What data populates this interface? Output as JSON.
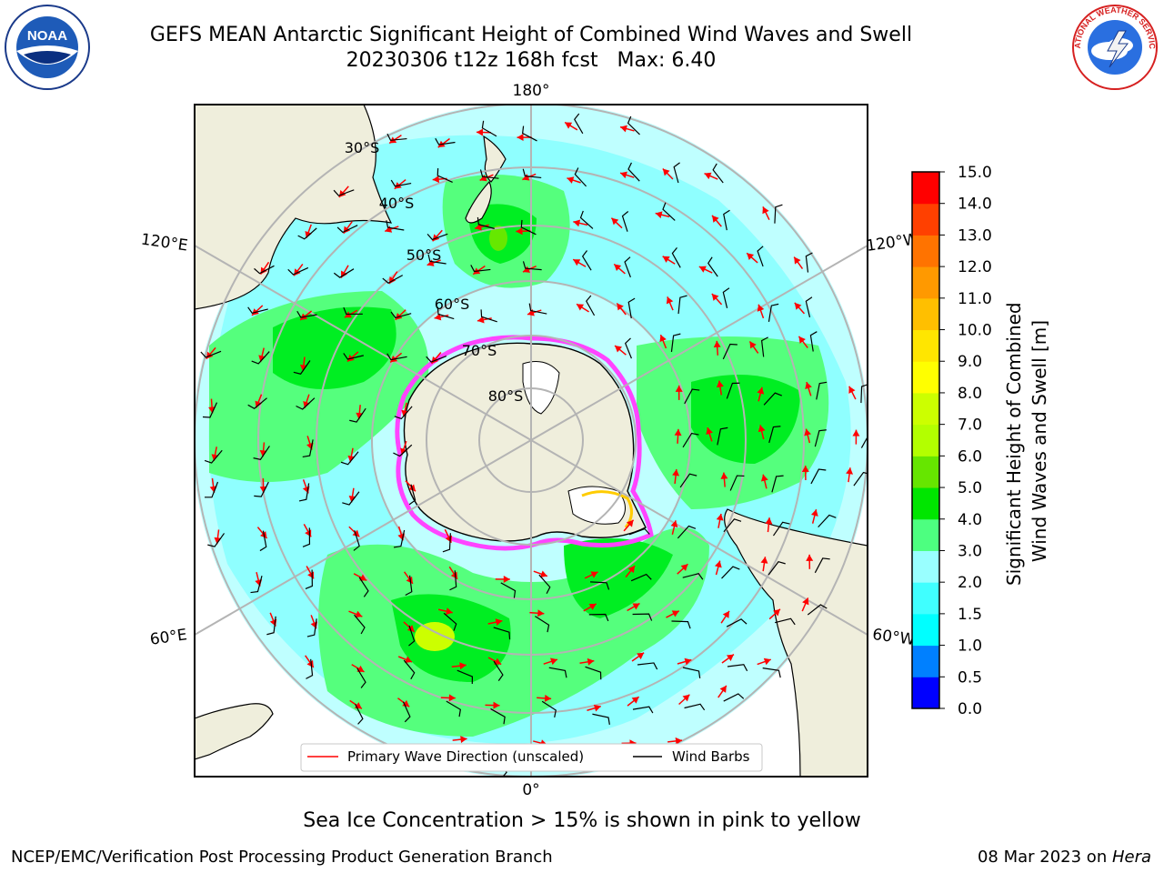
{
  "header": {
    "title_line1": "GEFS MEAN Antarctic Significant Height of Combined Wind Waves and Swell",
    "title_line2": "20230306 t12z 168h fcst   Max: 6.40",
    "noaa_logo_text": "NOAA",
    "nws_logo_text": "NATIONAL WEATHER SERVICE"
  },
  "map": {
    "projection": "south-polar-stereographic",
    "longitude_labels": {
      "top": "180°",
      "bottom": "0°",
      "upper_left": "120°E",
      "lower_left": "60°E",
      "upper_right": "120°W",
      "lower_right": "60°W"
    },
    "latitude_labels": [
      "30°S",
      "40°S",
      "50°S",
      "60°S",
      "70°S",
      "80°S"
    ],
    "colors": {
      "land": "#efeedc",
      "ocean_low": "#bfffff",
      "wave_2_3": "#8fffff",
      "wave_3_4": "#55ff7d",
      "wave_4_5": "#00ee22",
      "wave_5_6": "#66e800",
      "sea_ice": "#ff44ff",
      "sea_ice_edge": "#ffcc00",
      "grid": "#b4b4b4",
      "wave_arrow": "#ff0000",
      "wind_barb": "#000000"
    }
  },
  "legend": {
    "items": [
      {
        "label": "Primary Wave Direction (unscaled)",
        "color": "#ff0000"
      },
      {
        "label": "Wind Barbs",
        "color": "#000000"
      }
    ]
  },
  "colorbar": {
    "label_line1": "Significant Height of Combined",
    "label_line2": "Wind Waves and Swell [m]",
    "ticks": [
      "0.0",
      "0.5",
      "1.0",
      "1.5",
      "2.0",
      "3.0",
      "4.0",
      "5.0",
      "6.0",
      "7.0",
      "8.0",
      "9.0",
      "10.0",
      "11.0",
      "12.0",
      "13.0",
      "14.0",
      "15.0"
    ],
    "colors": [
      "#0000ff",
      "#0080ff",
      "#00ffff",
      "#40ffff",
      "#99ffff",
      "#4dff80",
      "#00e600",
      "#66e600",
      "#b3ff00",
      "#ccff00",
      "#ffff00",
      "#ffe600",
      "#ffbf00",
      "#ff9900",
      "#ff7300",
      "#ff4000",
      "#ff0000"
    ]
  },
  "footer": {
    "subtitle": "Sea Ice Concentration > 15% is shown in pink to yellow",
    "left": "NCEP/EMC/Verification Post Processing Product Generation Branch",
    "right_date": "08 Mar 2023 on ",
    "right_host": "Hera"
  }
}
